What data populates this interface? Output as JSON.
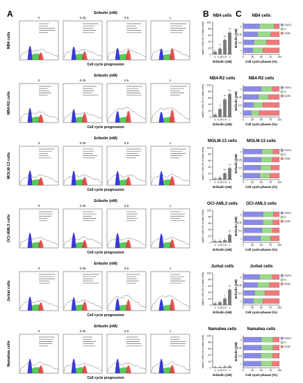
{
  "panel_letters": [
    "A",
    "B",
    "C"
  ],
  "eribulin_header": "Eribulin (nM)",
  "doses": [
    "0",
    "0.25",
    "0.5",
    "1"
  ],
  "x_axis_hist": "Cell cycle progression",
  "colors": {
    "g0g1": "#3a3ad8",
    "s": "#3cbf3c",
    "g2m": "#e03a3a",
    "bar": "#7a7a7a",
    "line": "#555555",
    "c_g0g1": "#8a8ae6",
    "c_s": "#9ad98a",
    "c_g2m": "#f07a7a"
  },
  "cell_lines": [
    {
      "name": "NB4 cells",
      "row_label": "NB4 cells"
    },
    {
      "name": "NB4-R2 cells",
      "row_label": "NB4-R2 cells"
    },
    {
      "name": "MOLM-13 cells",
      "row_label": "MOLM-13 cells"
    },
    {
      "name": "OCI-AML3 cells",
      "row_label": "OCI-AML3 cells"
    },
    {
      "name": "Jurkat cells",
      "row_label": "Jurkat cells"
    },
    {
      "name": "Namalwa cells",
      "row_label": "Namalwa cells"
    }
  ],
  "chart_data": [
    {
      "type": "bar",
      "panel": "B",
      "ylabel": "subG1 cells (% of total cells)",
      "xlabel": "Eribulin (nM)",
      "categories": [
        "0",
        "0.25",
        "0.5",
        "1"
      ],
      "ylim": [
        0,
        100
      ],
      "yticks": [
        "0",
        "20",
        "40",
        "60",
        "80",
        "100"
      ],
      "charts": [
        {
          "title": "NB4 cells",
          "values": [
            8,
            18,
            45,
            68
          ],
          "sig": [
            "",
            "**",
            "***",
            "***"
          ]
        },
        {
          "title": "NB4-R2 cells",
          "values": [
            7,
            25,
            55,
            72
          ],
          "sig": [
            "",
            "**",
            "***",
            "***"
          ]
        },
        {
          "title": "MOLM-13 cells",
          "values": [
            3,
            6,
            20,
            36
          ],
          "sig": [
            "",
            "",
            "***",
            "***"
          ]
        },
        {
          "title": "OCI-AML3 cells",
          "values": [
            4,
            4,
            7,
            24
          ],
          "sig": [
            "",
            "",
            "",
            "***"
          ]
        },
        {
          "title": "Jurkat cells",
          "values": [
            5,
            9,
            20,
            48
          ],
          "sig": [
            "",
            "",
            "*",
            "***"
          ]
        },
        {
          "title": "Namalwa cells",
          "values": [
            2,
            2,
            3,
            4
          ],
          "sig": [
            "",
            "",
            "",
            ""
          ]
        }
      ]
    },
    {
      "type": "bar",
      "orientation": "horizontal-stacked",
      "panel": "C",
      "ylabel": "Eribulin (nM)",
      "xlabel": "Cell cycle phases (%)",
      "categories": [
        "0",
        "0.25",
        "0.5",
        "1"
      ],
      "xlim": [
        0,
        100
      ],
      "xticks": [
        "0",
        "25",
        "50",
        "75",
        "100"
      ],
      "legend": [
        "G0/G1",
        "S",
        "G2/M"
      ],
      "charts": [
        {
          "title": "NB4 cells",
          "g0g1": [
            45,
            40,
            30,
            26
          ],
          "s": [
            40,
            36,
            34,
            28
          ],
          "g2m": [
            15,
            24,
            36,
            46
          ]
        },
        {
          "title": "NB4-R2 cells",
          "g0g1": [
            50,
            42,
            28,
            22
          ],
          "s": [
            30,
            28,
            26,
            22
          ],
          "g2m": [
            20,
            30,
            46,
            56
          ]
        },
        {
          "title": "MOLM-13 cells",
          "g0g1": [
            52,
            50,
            48,
            46
          ],
          "s": [
            30,
            30,
            29,
            28
          ],
          "g2m": [
            18,
            20,
            23,
            26
          ]
        },
        {
          "title": "OCI-AML3 cells",
          "g0g1": [
            55,
            55,
            52,
            48
          ],
          "s": [
            28,
            27,
            28,
            28
          ],
          "g2m": [
            17,
            18,
            20,
            24
          ]
        },
        {
          "title": "Jurkat cells",
          "g0g1": [
            45,
            40,
            32,
            28
          ],
          "s": [
            35,
            32,
            28,
            26
          ],
          "g2m": [
            20,
            28,
            40,
            46
          ]
        },
        {
          "title": "Namalwa cells",
          "g0g1": [
            50,
            50,
            49,
            49
          ],
          "s": [
            32,
            32,
            32,
            31
          ],
          "g2m": [
            18,
            18,
            19,
            20
          ]
        }
      ]
    }
  ]
}
